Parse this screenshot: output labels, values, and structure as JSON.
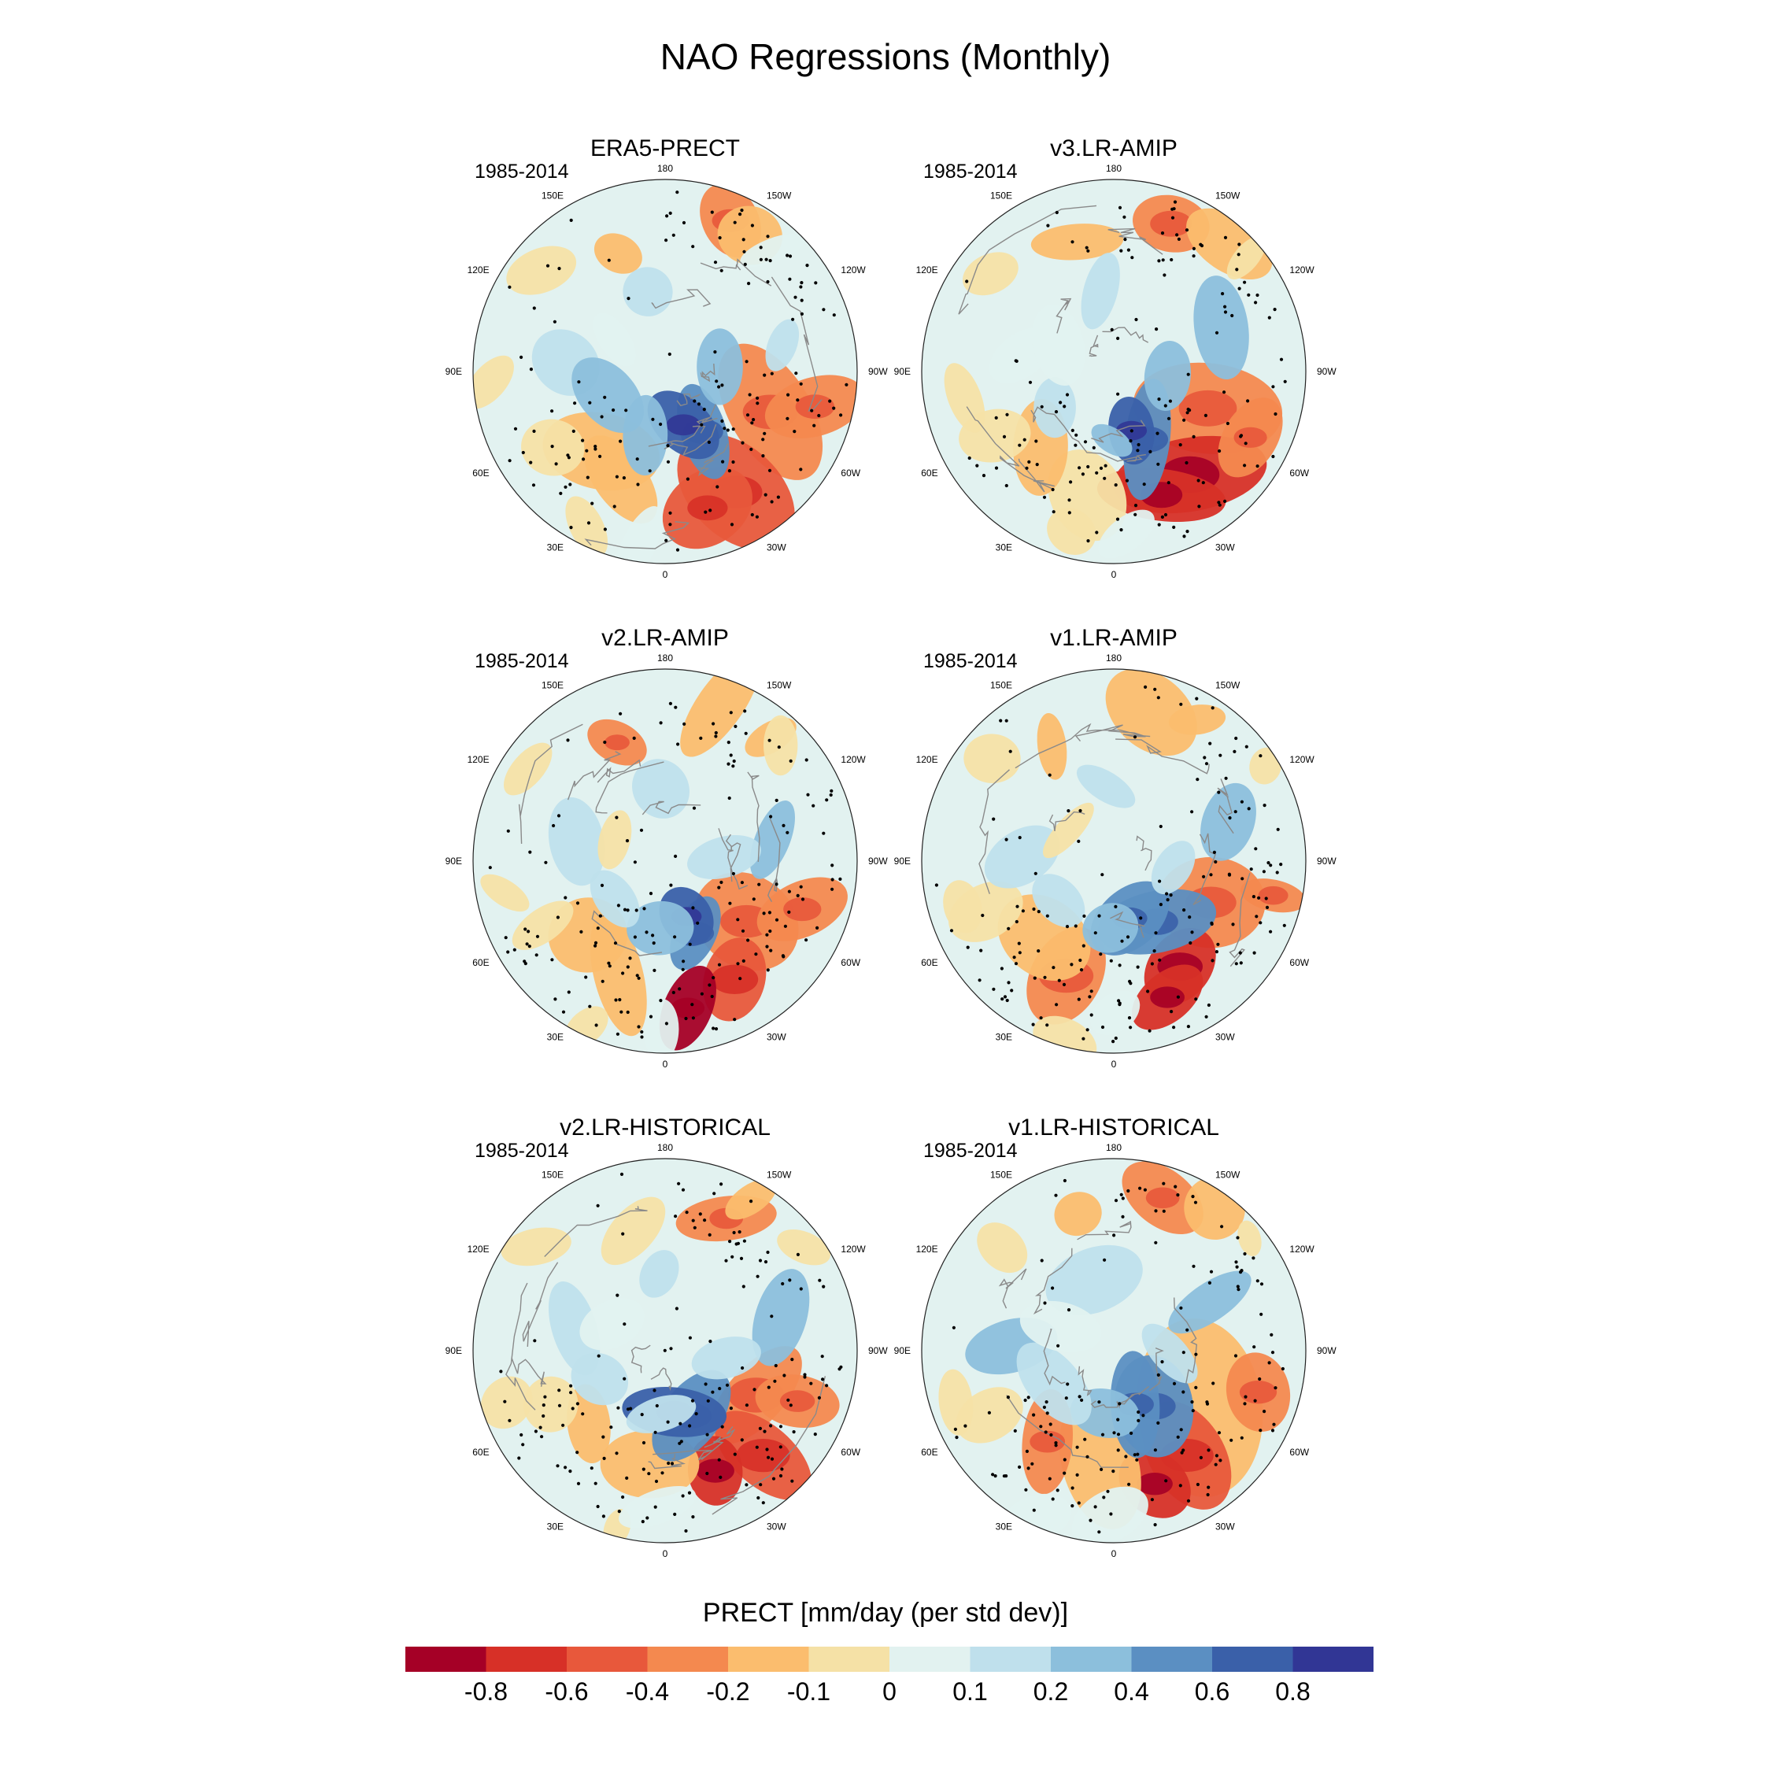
{
  "title": "NAO Regressions (Monthly)",
  "panels": [
    {
      "name": "ERA5-PRECT",
      "period": "1985-2014"
    },
    {
      "name": "v3.LR-AMIP",
      "period": "1985-2014"
    },
    {
      "name": "v2.LR-AMIP",
      "period": "1985-2014"
    },
    {
      "name": "v1.LR-AMIP",
      "period": "1985-2014"
    },
    {
      "name": "v2.LR-HISTORICAL",
      "period": "1985-2014"
    },
    {
      "name": "v1.LR-HISTORICAL",
      "period": "1985-2014"
    }
  ],
  "longitude_labels": [
    "180",
    "150E",
    "120E",
    "90E",
    "60E",
    "30E",
    "0",
    "30W",
    "60W",
    "90W",
    "120W",
    "150W"
  ],
  "colorbar": {
    "title": "PRECT [mm/day (per std dev)]",
    "tick_labels": [
      "-0.8",
      "-0.6",
      "-0.4",
      "-0.2",
      "-0.1",
      "0",
      "0.1",
      "0.2",
      "0.4",
      "0.6",
      "0.8"
    ],
    "colors": [
      "#a50026",
      "#d73027",
      "#e8583b",
      "#f4894f",
      "#fbbd6e",
      "#f5e1a6",
      "#e2f2f0",
      "#bfe0ec",
      "#8cbfdc",
      "#5b8fc2",
      "#3a60a9",
      "#313695"
    ]
  },
  "map_features": {
    "projection": "polar-stereographic north",
    "stippling": "significance dots",
    "coastlines": true
  }
}
